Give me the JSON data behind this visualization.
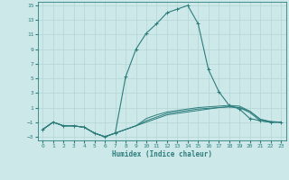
{
  "xlabel": "Humidex (Indice chaleur)",
  "background_color": "#cde8e8",
  "grid_color": "#b8d8d8",
  "line_color": "#2d7d7d",
  "xlim": [
    -0.5,
    23.5
  ],
  "ylim": [
    -3.5,
    15.5
  ],
  "yticks": [
    -3,
    -1,
    1,
    3,
    5,
    7,
    9,
    11,
    13,
    15
  ],
  "xticks": [
    0,
    1,
    2,
    3,
    4,
    5,
    6,
    7,
    8,
    9,
    10,
    11,
    12,
    13,
    14,
    15,
    16,
    17,
    18,
    19,
    20,
    21,
    22,
    23
  ],
  "curves": [
    {
      "x": [
        0,
        1,
        2,
        3,
        4,
        5,
        6,
        7,
        8,
        9,
        10,
        11,
        12,
        13,
        14,
        15,
        16,
        17,
        18,
        19,
        20,
        21,
        22,
        23
      ],
      "y": [
        -2,
        -1,
        -1.5,
        -1.5,
        -1.7,
        -2.5,
        -3.0,
        -2.5,
        5.2,
        9.0,
        11.2,
        12.5,
        14.0,
        14.5,
        15.0,
        12.5,
        6.2,
        3.2,
        1.3,
        0.8,
        -0.5,
        -0.8,
        -1.0,
        -1.0
      ],
      "has_markers": true
    },
    {
      "x": [
        0,
        1,
        2,
        3,
        4,
        5,
        6,
        7,
        8,
        9,
        10,
        11,
        12,
        13,
        14,
        15,
        16,
        17,
        18,
        19,
        20,
        21,
        22,
        23
      ],
      "y": [
        -2,
        -1,
        -1.5,
        -1.5,
        -1.7,
        -2.5,
        -3.0,
        -2.5,
        -2.0,
        -1.5,
        -1.0,
        -0.5,
        0.0,
        0.2,
        0.4,
        0.6,
        0.8,
        1.0,
        1.1,
        1.0,
        0.5,
        -0.6,
        -1.0,
        -1.0
      ],
      "has_markers": false
    },
    {
      "x": [
        0,
        1,
        2,
        3,
        4,
        5,
        6,
        7,
        8,
        9,
        10,
        11,
        12,
        13,
        14,
        15,
        16,
        17,
        18,
        19,
        20,
        21,
        22,
        23
      ],
      "y": [
        -2,
        -1,
        -1.5,
        -1.5,
        -1.7,
        -2.5,
        -3.0,
        -2.5,
        -2.0,
        -1.5,
        -0.8,
        -0.3,
        0.2,
        0.4,
        0.6,
        0.8,
        0.9,
        1.0,
        1.1,
        1.0,
        0.3,
        -0.8,
        -1.0,
        -1.0
      ],
      "has_markers": false
    },
    {
      "x": [
        0,
        1,
        2,
        3,
        4,
        5,
        6,
        7,
        8,
        9,
        10,
        11,
        12,
        13,
        14,
        15,
        16,
        17,
        18,
        19,
        20,
        21,
        22,
        23
      ],
      "y": [
        -2,
        -1,
        -1.5,
        -1.5,
        -1.7,
        -2.5,
        -3.0,
        -2.5,
        -2.0,
        -1.5,
        -0.5,
        0.0,
        0.4,
        0.6,
        0.8,
        1.0,
        1.1,
        1.2,
        1.3,
        1.2,
        0.5,
        -0.6,
        -0.9,
        -1.0
      ],
      "has_markers": false
    }
  ]
}
